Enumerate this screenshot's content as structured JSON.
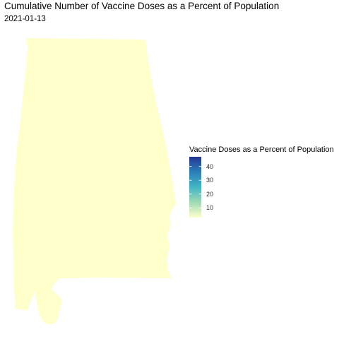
{
  "title": "Cumulative Number of Vaccine Doses as a Percent of Population",
  "subtitle": "2021-01-13",
  "chart_data": {
    "type": "choropleth",
    "title": "Cumulative Number of Vaccine Doses as a Percent of Population",
    "subtitle": "2021-01-13",
    "region": "Alabama",
    "region_fill_color": "#ffffcc",
    "legend": {
      "title": "Vaccine Doses as a Percent of Population",
      "placement": "right",
      "scale_min": 3,
      "scale_max": 47,
      "ticks": [
        10,
        20,
        30,
        40
      ],
      "tick_labels": [
        "10",
        "20",
        "30",
        "40"
      ],
      "colors": [
        "#ffffcc",
        "#a1dab4",
        "#41b6c4",
        "#2c7fb8",
        "#253494"
      ]
    }
  }
}
